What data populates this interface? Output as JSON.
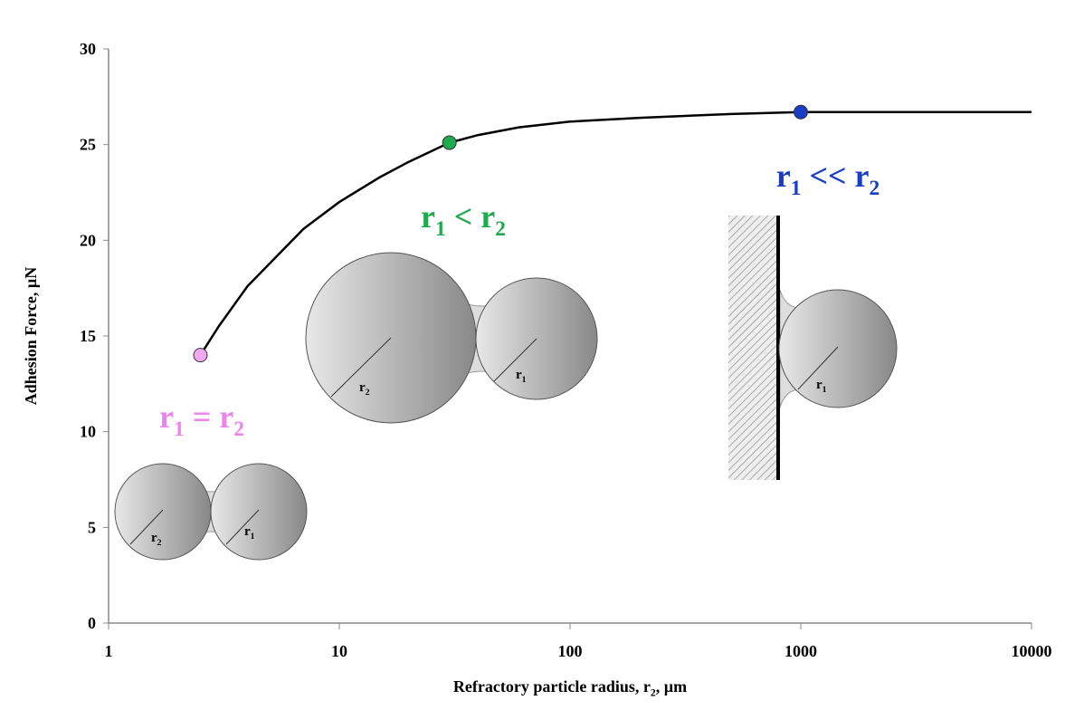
{
  "chart_data": {
    "type": "line",
    "x_label_parts": [
      {
        "text": "Refractory particle radius, r"
      },
      {
        "text": "2",
        "sub": true
      },
      {
        "text": ", µm"
      }
    ],
    "y_label": "Adhesion Force, µN",
    "x_log_scale": true,
    "xlim": [
      1,
      10000
    ],
    "xticks": [
      1,
      10,
      100,
      1000,
      10000
    ],
    "ylim": [
      0,
      30
    ],
    "yticks": [
      0,
      5,
      10,
      15,
      20,
      25,
      30
    ],
    "grid": false,
    "series": [
      {
        "color": "#000000",
        "x": [
          2.5,
          3,
          4,
          5,
          7,
          10,
          15,
          20,
          30,
          40,
          60,
          100,
          200,
          500,
          1000,
          3000,
          10000
        ],
        "values": [
          14,
          15.5,
          17.6,
          18.8,
          20.6,
          22,
          23.3,
          24.1,
          25.1,
          25.5,
          25.9,
          26.2,
          26.4,
          26.6,
          26.7,
          26.7,
          26.7
        ]
      }
    ],
    "markers": [
      {
        "x": 2.5,
        "value": 14,
        "color": "#f0a8f0"
      },
      {
        "x": 30,
        "value": 25.1,
        "color": "#1faa4f"
      },
      {
        "x": 1000,
        "value": 26.7,
        "color": "#1a3dc8"
      }
    ],
    "annotations": [
      {
        "color": "#ee82ee",
        "parts": [
          {
            "text": "r"
          },
          {
            "text": "1",
            "sub": true
          },
          {
            "text": " = r"
          },
          {
            "text": "2",
            "sub": true
          }
        ]
      },
      {
        "color": "#1faa4f",
        "parts": [
          {
            "text": "r"
          },
          {
            "text": "1",
            "sub": true
          },
          {
            "text": " < r"
          },
          {
            "text": "2",
            "sub": true
          }
        ]
      },
      {
        "color": "#1a3dc8",
        "parts": [
          {
            "text": "r"
          },
          {
            "text": "1",
            "sub": true
          },
          {
            "text": " << r"
          },
          {
            "text": "2",
            "sub": true
          }
        ]
      }
    ],
    "diagram_labels": [
      [
        {
          "text": "r"
        },
        {
          "text": "2",
          "sub": true
        }
      ],
      [
        {
          "text": "r"
        },
        {
          "text": "1",
          "sub": true
        }
      ],
      [
        {
          "text": "r"
        },
        {
          "text": "2",
          "sub": true
        }
      ],
      [
        {
          "text": "r"
        },
        {
          "text": "1",
          "sub": true
        }
      ],
      [
        {
          "text": "r"
        },
        {
          "text": "1",
          "sub": true
        }
      ]
    ]
  }
}
